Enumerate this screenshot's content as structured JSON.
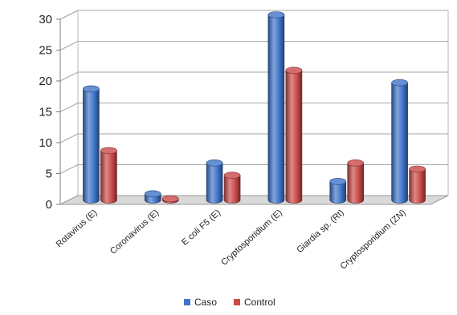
{
  "chart_data": {
    "type": "bar",
    "title": "",
    "xlabel": "",
    "ylabel": "",
    "categories": [
      "Rotavirus (E)",
      "Coronavirus (E)",
      "E coli F5 (E)",
      "Cryptosporidium (E)",
      "Giardia sp. (Rt)",
      "Cryptosporidium (ZN)"
    ],
    "series": [
      {
        "name": "Caso",
        "color": "#3f74c9",
        "values": [
          18,
          1,
          6,
          30,
          3,
          19
        ]
      },
      {
        "name": "Control",
        "color": "#c94a48",
        "values": [
          8,
          0.2,
          4,
          21,
          6,
          5
        ]
      }
    ],
    "ylim": [
      0,
      30
    ],
    "yticks": [
      0,
      5,
      10,
      15,
      20,
      25,
      30
    ],
    "grid": true,
    "legend": "bottom-center",
    "style": "3d-cylinder"
  }
}
